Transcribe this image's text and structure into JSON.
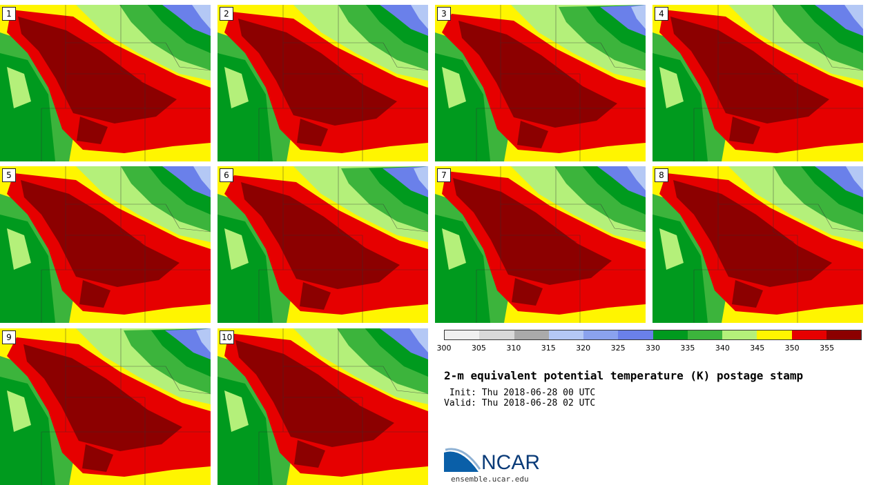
{
  "panels": [
    "1",
    "2",
    "3",
    "4",
    "5",
    "6",
    "7",
    "8",
    "9",
    "10"
  ],
  "colorbar": {
    "ticks": [
      "300",
      "305",
      "310",
      "315",
      "320",
      "325",
      "330",
      "335",
      "340",
      "345",
      "350",
      "355"
    ],
    "colors": [
      "#f0f0f0",
      "#d9d9d9",
      "#aaaaaa",
      "#b4c8f5",
      "#8aa2ee",
      "#6a80ea",
      "#009a1e",
      "#3cb43c",
      "#b4f07a",
      "#fff500",
      "#e60000",
      "#8c0000"
    ]
  },
  "title": "2-m equivalent potential temperature (K) postage stamp",
  "init_line": " Init: Thu 2018-06-28 00 UTC",
  "valid_line": "Valid: Thu 2018-06-28 02 UTC",
  "logo": {
    "word": "NCAR",
    "site": "ensemble.ucar.edu",
    "color": "#0a5fa8"
  }
}
